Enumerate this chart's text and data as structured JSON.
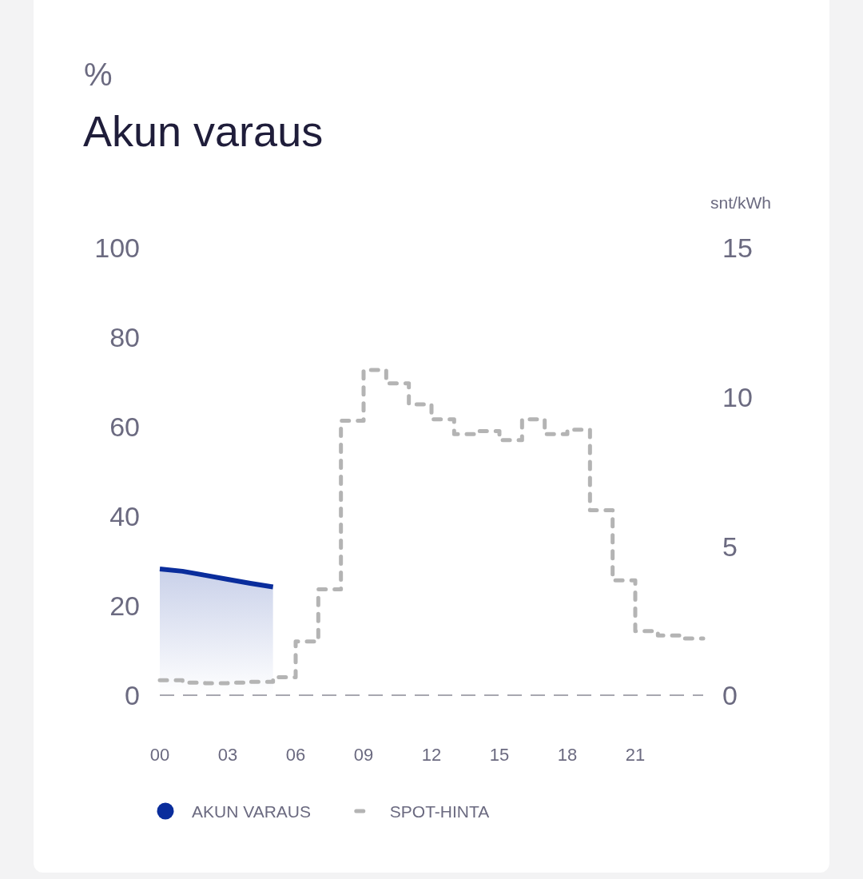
{
  "chart_data": {
    "type": "area",
    "title": "Akun varaus",
    "ylabel": "%",
    "y2label": "snt/kWh",
    "x": [
      0,
      1,
      2,
      3,
      4,
      5,
      6,
      7,
      8,
      9,
      10,
      11,
      12,
      13,
      14,
      15,
      16,
      17,
      18,
      19,
      20,
      21,
      22,
      23,
      24
    ],
    "series": [
      {
        "name": "AKUN VARAUS",
        "color": "#0a2d9c",
        "x": [
          0,
          1,
          2,
          3,
          4,
          5
        ],
        "values": [
          28.2,
          27.7,
          26.8,
          25.9,
          25.0,
          24.2
        ]
      },
      {
        "name": "SPOT-HINTA",
        "type": "step",
        "axis": "y2",
        "color": "#b4b4b4",
        "line_style": "dashed",
        "values": [
          0.5,
          0.42,
          0.4,
          0.42,
          0.45,
          0.6,
          1.8,
          3.55,
          9.2,
          10.9,
          10.45,
          9.75,
          9.25,
          8.75,
          8.85,
          8.55,
          9.25,
          8.75,
          8.9,
          6.2,
          3.85,
          2.15,
          2.0,
          1.9,
          1.9
        ]
      }
    ],
    "xlim": [
      0,
      24
    ],
    "xticks": [
      {
        "value": 0,
        "label": "00"
      },
      {
        "value": 3,
        "label": "03"
      },
      {
        "value": 6,
        "label": "06"
      },
      {
        "value": 9,
        "label": "09"
      },
      {
        "value": 12,
        "label": "12"
      },
      {
        "value": 15,
        "label": "15"
      },
      {
        "value": 18,
        "label": "18"
      },
      {
        "value": 21,
        "label": "21"
      }
    ],
    "ylim": [
      0,
      100
    ],
    "yticks": [
      0,
      20,
      40,
      60,
      80,
      100
    ],
    "y2lim": [
      0,
      15
    ],
    "y2ticks": [
      0,
      5,
      10,
      15
    ],
    "legend": "bottom"
  }
}
